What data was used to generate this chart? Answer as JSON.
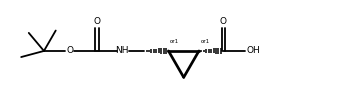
{
  "bg_color": "#ffffff",
  "line_color": "#000000",
  "lw": 1.3,
  "figsize": [
    3.38,
    1.1
  ],
  "dpi": 100,
  "xlim": [
    0,
    10
  ],
  "ylim": [
    0,
    3.2
  ]
}
